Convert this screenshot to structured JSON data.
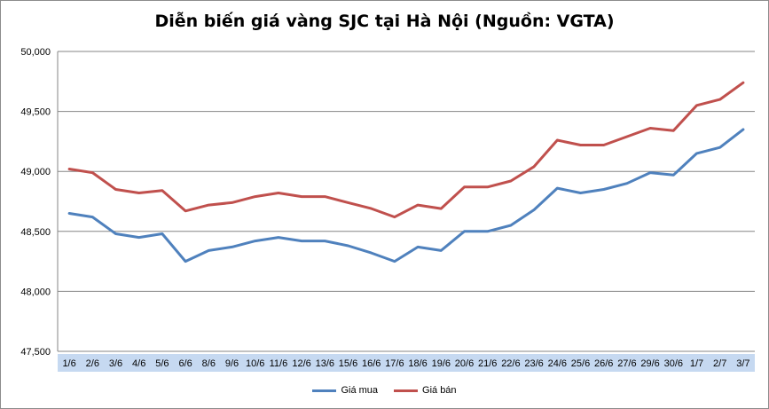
{
  "chart_data": {
    "type": "line",
    "title": "Diễn biến giá vàng SJC tại Hà Nội (Nguồn: VGTA)",
    "xlabel": "",
    "ylabel": "",
    "ylim": [
      47500,
      50000
    ],
    "yticks": [
      47500,
      48000,
      48500,
      49000,
      49500,
      50000
    ],
    "ytick_labels": [
      "47,500",
      "48,000",
      "48,500",
      "49,000",
      "49,500",
      "50,000"
    ],
    "grid": true,
    "legend_position": "bottom",
    "categories": [
      "1/6",
      "2/6",
      "3/6",
      "4/6",
      "5/6",
      "6/6",
      "8/6",
      "9/6",
      "10/6",
      "11/6",
      "12/6",
      "13/6",
      "15/6",
      "16/6",
      "17/6",
      "18/6",
      "19/6",
      "20/6",
      "21/6",
      "22/6",
      "23/6",
      "24/6",
      "25/6",
      "26/6",
      "27/6",
      "29/6",
      "30/6",
      "1/7",
      "2/7",
      "3/7"
    ],
    "series": [
      {
        "name": "Giá mua",
        "color": "#4f81bd",
        "values": [
          48650,
          48620,
          48480,
          48450,
          48480,
          48250,
          48340,
          48370,
          48420,
          48450,
          48420,
          48420,
          48380,
          48320,
          48250,
          48370,
          48340,
          48500,
          48500,
          48550,
          48680,
          48860,
          48820,
          48850,
          48900,
          48990,
          48970,
          49150,
          49200,
          49350
        ]
      },
      {
        "name": "Giá bán",
        "color": "#c0504d",
        "values": [
          49020,
          48990,
          48850,
          48820,
          48840,
          48670,
          48720,
          48740,
          48790,
          48820,
          48790,
          48790,
          48740,
          48690,
          48620,
          48720,
          48690,
          48870,
          48870,
          48920,
          49040,
          49260,
          49220,
          49220,
          49290,
          49360,
          49340,
          49550,
          49600,
          49740
        ]
      }
    ]
  }
}
